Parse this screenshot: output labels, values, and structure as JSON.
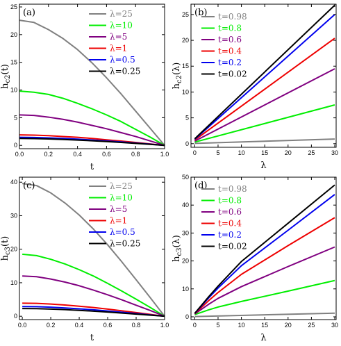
{
  "chart_data": [
    {
      "panel": "(a)",
      "type": "line",
      "xlabel": "t",
      "ylabel": "h_c2(t)",
      "xlim": [
        0.0,
        1.0
      ],
      "ylim": [
        -0.6,
        25.5
      ],
      "xticks": [
        0.0,
        0.2,
        0.4,
        0.6,
        0.8,
        1.0
      ],
      "xtick_labels": [
        "0.0",
        "0.2",
        "0.4",
        "0.6",
        "0.8",
        "1.0"
      ],
      "yticks": [
        0,
        5,
        10,
        15,
        20,
        25
      ],
      "ytick_labels": [
        "0",
        "5",
        "10",
        "15",
        "20",
        "25"
      ],
      "legend_position": "top-right",
      "series": [
        {
          "name": "λ=25",
          "color": "#808080",
          "x": [
            0,
            0.1,
            0.2,
            0.3,
            0.4,
            0.5,
            0.6,
            0.7,
            0.8,
            0.9,
            1.0
          ],
          "values": [
            22.6,
            22.2,
            20.9,
            19.3,
            17.3,
            14.9,
            12.2,
            9.3,
            6.2,
            3.1,
            0.0
          ]
        },
        {
          "name": "λ=10",
          "color": "#00ee00",
          "x": [
            0,
            0.1,
            0.2,
            0.3,
            0.4,
            0.5,
            0.6,
            0.7,
            0.8,
            0.9,
            1.0
          ],
          "values": [
            9.8,
            9.6,
            9.2,
            8.5,
            7.6,
            6.6,
            5.5,
            4.3,
            2.9,
            1.5,
            0.0
          ]
        },
        {
          "name": "λ=5",
          "color": "#800080",
          "x": [
            0,
            0.1,
            0.2,
            0.3,
            0.4,
            0.5,
            0.6,
            0.7,
            0.8,
            0.9,
            1.0
          ],
          "values": [
            5.5,
            5.4,
            5.1,
            4.7,
            4.2,
            3.6,
            3.0,
            2.3,
            1.6,
            0.8,
            0.0
          ]
        },
        {
          "name": "λ=1",
          "color": "#ee0000",
          "x": [
            0,
            0.1,
            0.2,
            0.3,
            0.4,
            0.5,
            0.6,
            0.7,
            0.8,
            0.9,
            1.0
          ],
          "values": [
            1.9,
            1.85,
            1.75,
            1.6,
            1.45,
            1.25,
            1.0,
            0.78,
            0.53,
            0.27,
            0.0
          ]
        },
        {
          "name": "λ=0.5",
          "color": "#0000ee",
          "x": [
            0,
            0.1,
            0.2,
            0.3,
            0.4,
            0.5,
            0.6,
            0.7,
            0.8,
            0.9,
            1.0
          ],
          "values": [
            1.45,
            1.42,
            1.35,
            1.25,
            1.12,
            0.97,
            0.8,
            0.62,
            0.42,
            0.21,
            0.0
          ]
        },
        {
          "name": "λ=0.25",
          "color": "#000000",
          "x": [
            0,
            0.1,
            0.2,
            0.3,
            0.4,
            0.5,
            0.6,
            0.7,
            0.8,
            0.9,
            1.0
          ],
          "values": [
            1.25,
            1.22,
            1.16,
            1.07,
            0.96,
            0.83,
            0.68,
            0.53,
            0.36,
            0.18,
            0.0
          ]
        }
      ]
    },
    {
      "panel": "(b)",
      "type": "line",
      "xlabel": "λ",
      "ylabel": "h_c2(λ)",
      "xlim": [
        -0.8,
        30.3
      ],
      "ylim": [
        -0.7,
        27.0
      ],
      "xticks": [
        0,
        5,
        10,
        15,
        20,
        25,
        30
      ],
      "xtick_labels": [
        "0",
        "5",
        "10",
        "15",
        "20",
        "25",
        "30"
      ],
      "yticks": [
        0,
        5,
        10,
        15,
        20,
        25
      ],
      "ytick_labels": [
        "0",
        "5",
        "10",
        "15",
        "20",
        "25"
      ],
      "legend_position": "top-left",
      "series": [
        {
          "name": "t=0.98",
          "color": "#808080",
          "x": [
            0,
            30
          ],
          "values": [
            0.05,
            0.9
          ]
        },
        {
          "name": "t=0.8",
          "color": "#00ee00",
          "x": [
            0,
            30
          ],
          "values": [
            0.3,
            7.5
          ]
        },
        {
          "name": "t=0.6",
          "color": "#800080",
          "x": [
            0,
            30
          ],
          "values": [
            0.5,
            14.5
          ]
        },
        {
          "name": "t=0.4",
          "color": "#ee0000",
          "x": [
            0,
            30
          ],
          "values": [
            0.7,
            20.4
          ]
        },
        {
          "name": "t=0.2",
          "color": "#0000ee",
          "x": [
            0,
            30
          ],
          "values": [
            0.85,
            25.0
          ]
        },
        {
          "name": "t=0.02",
          "color": "#000000",
          "x": [
            0,
            30
          ],
          "values": [
            0.95,
            26.8
          ]
        }
      ]
    },
    {
      "panel": "(c)",
      "type": "line",
      "xlabel": "t",
      "ylabel": "h_c3(t)",
      "xlim": [
        -0.02,
        1.0
      ],
      "ylim": [
        -1.0,
        41.5
      ],
      "xticks": [
        0.0,
        0.2,
        0.4,
        0.6,
        0.8,
        1.0
      ],
      "xtick_labels": [
        "0.0",
        "0.2",
        "0.4",
        "0.6",
        "0.8",
        "1.0"
      ],
      "yticks": [
        0,
        10,
        20,
        30,
        40
      ],
      "ytick_labels": [
        "0",
        "10",
        "20",
        "30",
        "40"
      ],
      "legend_position": "top-right",
      "series": [
        {
          "name": "λ=25",
          "color": "#808080",
          "x": [
            0,
            0.1,
            0.2,
            0.3,
            0.4,
            0.5,
            0.6,
            0.7,
            0.8,
            0.9,
            1.0
          ],
          "values": [
            39.6,
            39.0,
            36.8,
            33.8,
            30.2,
            26.0,
            21.3,
            16.2,
            10.9,
            5.5,
            0.0
          ]
        },
        {
          "name": "λ=10",
          "color": "#00ee00",
          "x": [
            0,
            0.1,
            0.2,
            0.3,
            0.4,
            0.5,
            0.6,
            0.7,
            0.8,
            0.9,
            1.0
          ],
          "values": [
            18.5,
            18.1,
            17.0,
            15.6,
            13.9,
            12.0,
            9.8,
            7.5,
            5.1,
            2.6,
            0.0
          ]
        },
        {
          "name": "λ=5",
          "color": "#800080",
          "x": [
            0,
            0.1,
            0.2,
            0.3,
            0.4,
            0.5,
            0.6,
            0.7,
            0.8,
            0.9,
            1.0
          ],
          "values": [
            12.0,
            11.8,
            11.1,
            10.2,
            9.1,
            7.8,
            6.4,
            4.9,
            3.3,
            1.7,
            0.0
          ]
        },
        {
          "name": "λ=1",
          "color": "#ee0000",
          "x": [
            0,
            0.1,
            0.2,
            0.3,
            0.4,
            0.5,
            0.6,
            0.7,
            0.8,
            0.9,
            1.0
          ],
          "values": [
            3.9,
            3.85,
            3.65,
            3.35,
            3.0,
            2.6,
            2.13,
            1.63,
            1.1,
            0.55,
            0.0
          ]
        },
        {
          "name": "λ=0.5",
          "color": "#0000ee",
          "x": [
            0,
            0.1,
            0.2,
            0.3,
            0.4,
            0.5,
            0.6,
            0.7,
            0.8,
            0.9,
            1.0
          ],
          "values": [
            2.9,
            2.85,
            2.7,
            2.48,
            2.22,
            1.92,
            1.57,
            1.2,
            0.81,
            0.41,
            0.0
          ]
        },
        {
          "name": "λ=0.25",
          "color": "#000000",
          "x": [
            0,
            0.1,
            0.2,
            0.3,
            0.4,
            0.5,
            0.6,
            0.7,
            0.8,
            0.9,
            1.0
          ],
          "values": [
            2.3,
            2.26,
            2.14,
            1.97,
            1.76,
            1.52,
            1.25,
            0.95,
            0.64,
            0.32,
            0.0
          ]
        }
      ]
    },
    {
      "panel": "(d)",
      "type": "line",
      "xlabel": "λ",
      "ylabel": "h_c3(λ)",
      "xlim": [
        -0.8,
        30.3
      ],
      "ylim": [
        -1.0,
        50.0
      ],
      "xticks": [
        0,
        5,
        10,
        15,
        20,
        25,
        30
      ],
      "xtick_labels": [
        "0",
        "5",
        "10",
        "15",
        "20",
        "25",
        "30"
      ],
      "yticks": [
        0,
        10,
        20,
        30,
        40,
        50
      ],
      "ytick_labels": [
        "0",
        "10",
        "20",
        "30",
        "40",
        "50"
      ],
      "legend_position": "top-left",
      "series": [
        {
          "name": "t=0.98",
          "color": "#808080",
          "x": [
            0,
            30
          ],
          "values": [
            0.1,
            1.3
          ]
        },
        {
          "name": "t=0.8",
          "color": "#00ee00",
          "x": [
            0,
            3,
            5,
            10,
            20,
            30
          ],
          "values": [
            0.8,
            2.5,
            3.5,
            5.5,
            9.2,
            13.0
          ]
        },
        {
          "name": "t=0.6",
          "color": "#800080",
          "x": [
            0,
            3,
            5,
            10,
            20,
            30
          ],
          "values": [
            1.0,
            4.5,
            6.6,
            10.8,
            18.0,
            25.0
          ]
        },
        {
          "name": "t=0.4",
          "color": "#ee0000",
          "x": [
            0,
            3,
            5,
            10,
            20,
            30
          ],
          "values": [
            1.1,
            5.8,
            8.7,
            15.2,
            25.5,
            35.5
          ]
        },
        {
          "name": "t=0.2",
          "color": "#0000ee",
          "x": [
            0,
            3,
            5,
            10,
            20,
            30
          ],
          "values": [
            1.2,
            6.8,
            10.3,
            18.3,
            31.0,
            43.8
          ]
        },
        {
          "name": "t=0.02",
          "color": "#000000",
          "x": [
            0,
            3,
            5,
            10,
            20,
            30
          ],
          "values": [
            1.25,
            7.2,
            11.0,
            19.8,
            33.5,
            47.2
          ]
        }
      ]
    }
  ]
}
